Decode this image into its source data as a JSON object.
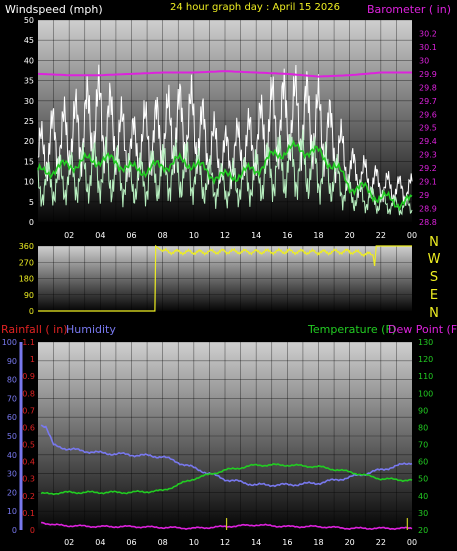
{
  "chart_data": [
    {
      "type": "line",
      "panel": "wind-barometer",
      "title": "24 hour graph day : April 15 2026",
      "left_label": "Windspeed (mph)",
      "right_label": "Barometer ( in)",
      "left_ticks": [
        0,
        5,
        10,
        15,
        20,
        25,
        30,
        35,
        40,
        45,
        50
      ],
      "right_ticks": [
        "28.8",
        "28.9",
        "29",
        "29.1",
        "29.2",
        "29.3",
        "29.4",
        "29.5",
        "29.6",
        "29.7",
        "29.8",
        "29.9",
        "30",
        "30.1",
        "30.2"
      ],
      "x_ticks": [
        "02",
        "04",
        "06",
        "08",
        "10",
        "12",
        "14",
        "16",
        "18",
        "20",
        "22",
        "00"
      ],
      "ylim_left": [
        0,
        50
      ],
      "ylim_right": [
        28.8,
        30.3
      ],
      "colors": {
        "gust": "#ffffff",
        "wind": "#b8f0c0",
        "average": "#22cc22",
        "barometer": "#dd22dd"
      },
      "series": [
        {
          "name": "",
          "hours": [
            0,
            1,
            2,
            3,
            4,
            5,
            6,
            7,
            8,
            9,
            10,
            11,
            12,
            13,
            14,
            15,
            16,
            17,
            18,
            19,
            20,
            21,
            22,
            23,
            24
          ],
          "values": [
            16,
            20,
            21,
            24,
            26,
            22,
            18,
            21,
            22,
            24,
            24,
            19,
            16,
            18,
            20,
            25,
            26,
            26,
            24,
            20,
            13,
            11,
            9,
            8,
            8
          ]
        },
        {
          "name": "",
          "hours": [
            0,
            1,
            2,
            3,
            4,
            5,
            6,
            7,
            8,
            9,
            10,
            11,
            12,
            13,
            14,
            15,
            16,
            17,
            18,
            19,
            20,
            21,
            22,
            23,
            24
          ],
          "values": [
            9,
            10,
            11,
            12,
            13,
            12,
            10,
            11,
            12,
            13,
            12,
            10,
            9,
            10,
            11,
            13,
            14,
            14,
            13,
            11,
            7,
            6,
            5,
            4,
            4
          ]
        },
        {
          "name": "",
          "hours": [
            0,
            1,
            2,
            3,
            4,
            5,
            6,
            7,
            8,
            9,
            10,
            11,
            12,
            13,
            14,
            15,
            16,
            17,
            18,
            19,
            20,
            21,
            22,
            23,
            24
          ],
          "values": [
            12,
            13,
            14,
            15,
            15.5,
            15,
            13,
            13,
            14,
            15,
            14.5,
            12,
            11,
            12,
            13,
            16,
            18,
            18,
            17,
            14,
            9,
            8,
            6,
            5,
            5
          ]
        },
        {
          "name": "",
          "hours": [
            0,
            2,
            4,
            6,
            8,
            10,
            12,
            14,
            16,
            17,
            18,
            20,
            22,
            24
          ],
          "values": [
            29.9,
            29.89,
            29.89,
            29.9,
            29.91,
            29.91,
            29.92,
            29.91,
            29.9,
            29.89,
            29.88,
            29.89,
            29.91,
            29.91
          ]
        }
      ]
    },
    {
      "type": "line",
      "panel": "wind-direction",
      "right_labels": [
        "N",
        "W",
        "S",
        "E",
        "N"
      ],
      "left_ticks": [
        0,
        90,
        180,
        270,
        360
      ],
      "ylim": [
        0,
        360
      ],
      "color": "#eeee22",
      "series": [
        {
          "name": "",
          "hours": [
            0,
            7.5,
            7.55,
            8,
            10,
            12,
            14,
            16,
            18,
            20,
            21.5,
            21.6,
            21.7,
            24
          ],
          "values": [
            0,
            0,
            360,
            330,
            325,
            330,
            328,
            330,
            325,
            330,
            310,
            250,
            360,
            360
          ]
        }
      ]
    },
    {
      "type": "line",
      "panel": "rain-humidity-temperature",
      "rain_label": "Rainfall ( in)",
      "humidity_label": "Humidity",
      "temp_label": "Temperature (F)",
      "dew_label": "Dew Point (F)",
      "humidity_ticks": [
        0,
        10,
        20,
        30,
        40,
        50,
        60,
        70,
        80,
        90,
        100
      ],
      "rain_ticks": [
        "0",
        "0.1",
        "0.2",
        "0.3",
        "0.4",
        "0.5",
        "0.6",
        "0.7",
        "0.8",
        "0.9",
        "1",
        "1.1"
      ],
      "temp_ticks": [
        20,
        30,
        40,
        50,
        60,
        70,
        80,
        90,
        100,
        110,
        120,
        130
      ],
      "x_ticks": [
        "02",
        "04",
        "06",
        "08",
        "10",
        "12",
        "14",
        "16",
        "18",
        "20",
        "22",
        "00"
      ],
      "colors": {
        "humidity": "#7878ee",
        "rainfall": "#dd2222",
        "temperature": "#22cc22",
        "dewpoint": "#dd22dd"
      },
      "series": [
        {
          "name": "",
          "hours": [
            0,
            0.5,
            1,
            2,
            4,
            6,
            8,
            9,
            10,
            11,
            12,
            14,
            16,
            18,
            20,
            22,
            23,
            24
          ],
          "values": [
            57,
            55,
            45,
            43,
            41,
            40,
            39,
            36,
            33,
            30,
            27,
            24,
            24,
            25,
            28,
            32,
            34,
            36
          ]
        },
        {
          "name": "",
          "hours": [
            0,
            2,
            4,
            6,
            8,
            10,
            12,
            14,
            16,
            18,
            20,
            22,
            24
          ],
          "values": [
            41,
            42,
            42,
            42,
            43,
            50,
            55,
            58,
            58,
            57,
            54,
            50,
            49
          ]
        },
        {
          "name": "",
          "hours": [
            0,
            0.5,
            1,
            2,
            4,
            6,
            8,
            10,
            12,
            14,
            16,
            18,
            20,
            22,
            24
          ],
          "values": [
            25,
            24,
            23,
            22.5,
            22,
            22,
            21.5,
            21,
            22,
            23,
            22,
            22,
            21,
            21,
            21
          ]
        }
      ]
    }
  ]
}
